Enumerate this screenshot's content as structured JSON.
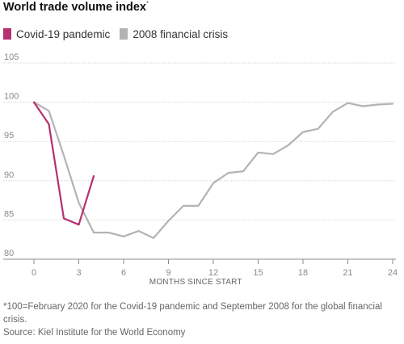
{
  "header": {
    "title": "World trade volume index",
    "title_marker": "*"
  },
  "legend": [
    {
      "label": "Covid-19 pandemic",
      "color": "#b5306e"
    },
    {
      "label": "2008 financial crisis",
      "color": "#b3b3b3"
    }
  ],
  "footer": {
    "footnote": "*100=February 2020 for the Covid-19 pandemic and September 2008 for the global financial crisis.",
    "source": "Source: Kiel Institute for the World Economy"
  },
  "chart_data": {
    "type": "line",
    "title": "World trade volume index",
    "xlabel": "MONTHS SINCE START",
    "ylabel": "",
    "xlim": [
      0,
      24
    ],
    "ylim": [
      80,
      105
    ],
    "x_ticks": [
      0,
      3,
      6,
      9,
      12,
      15,
      18,
      21,
      24
    ],
    "y_ticks": [
      80,
      85,
      90,
      95,
      100,
      105
    ],
    "grid": true,
    "legend_position": "top-left",
    "series": [
      {
        "name": "2008 financial crisis",
        "color": "#b3b3b3",
        "x": [
          0,
          1,
          2,
          3,
          4,
          5,
          6,
          7,
          8,
          9,
          10,
          11,
          12,
          13,
          14,
          15,
          16,
          17,
          18,
          19,
          20,
          21,
          22,
          23,
          24
        ],
        "values": [
          100,
          98.9,
          93.2,
          87.2,
          83.4,
          83.4,
          82.9,
          83.6,
          82.7,
          84.9,
          86.8,
          86.8,
          89.7,
          91.0,
          91.2,
          93.6,
          93.4,
          94.5,
          96.2,
          96.6,
          98.8,
          99.9,
          99.5,
          99.7,
          99.8
        ]
      },
      {
        "name": "Covid-19 pandemic",
        "color": "#b5306e",
        "x": [
          0,
          1,
          2,
          3,
          4
        ],
        "values": [
          100,
          97.2,
          85.2,
          84.4,
          90.6
        ]
      }
    ]
  }
}
